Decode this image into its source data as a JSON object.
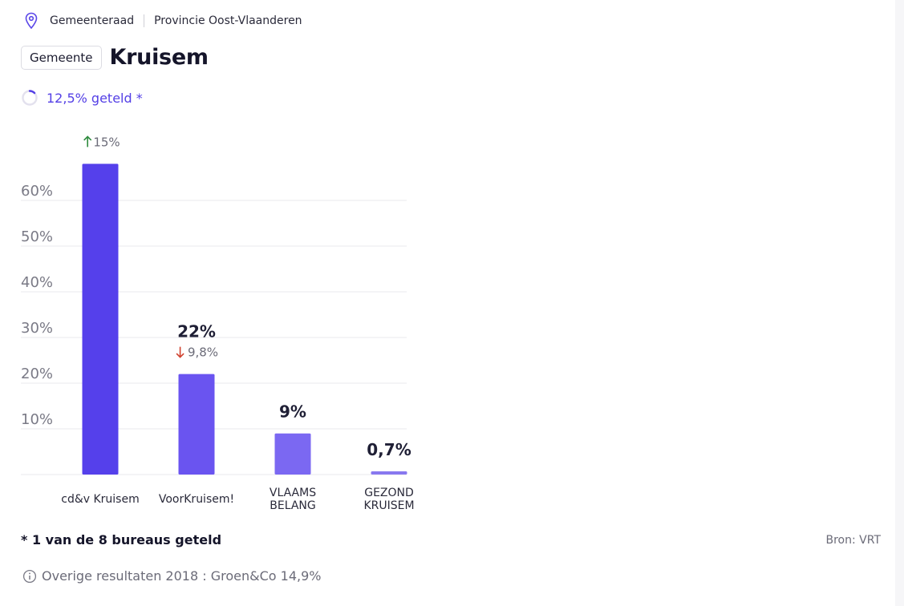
{
  "breadcrumb": {
    "level": "Gemeenteraad",
    "province": "Provincie Oost-Vlaanderen"
  },
  "header": {
    "tag": "Gemeente",
    "title": "Kruisem"
  },
  "progress": {
    "label": "12,5% geteld *",
    "fraction": 0.125
  },
  "chart_data": {
    "type": "bar",
    "categories": [
      "cd&v Kruisem",
      "VoorKruisem!",
      "VLAAMS BELANG",
      "GEZOND KRUISEM"
    ],
    "category_lines": [
      [
        "cd&v Kruisem"
      ],
      [
        "VoorKruisem!"
      ],
      [
        "VLAAMS",
        "BELANG"
      ],
      [
        "GEZOND",
        "KRUISEM"
      ]
    ],
    "values": [
      68,
      22,
      9,
      0.7
    ],
    "value_labels": [
      "",
      "22%",
      "9%",
      "0,7%"
    ],
    "changes": [
      {
        "direction": "up",
        "text": "15%"
      },
      {
        "direction": "down",
        "text": "9,8%"
      },
      null,
      null
    ],
    "bar_colors": [
      "#5540eb",
      "#6a54f0",
      "#7b68f2",
      "#8878ef"
    ],
    "yticks": [
      10,
      20,
      30,
      40,
      50,
      60
    ],
    "ytick_labels": [
      "10%",
      "20%",
      "30%",
      "40%",
      "50%",
      "60%"
    ],
    "ylim": [
      0,
      70
    ],
    "grid": true,
    "colors": {
      "up": "#2e8b3e",
      "down": "#d0412e",
      "grid": "#e9e9ee",
      "axis_text": "#7a7a86"
    }
  },
  "footer": {
    "note": "* 1 van de 8 bureaus geteld",
    "source": "Bron: VRT",
    "other_results": "Overige resultaten 2018 : Groen&Co 14,9%"
  }
}
